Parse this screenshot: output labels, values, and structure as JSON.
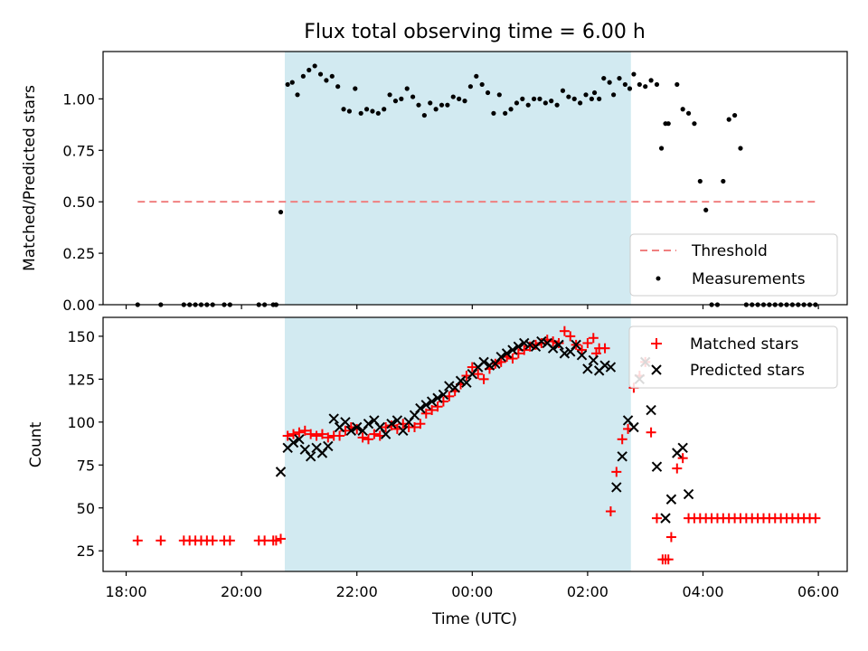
{
  "figure": {
    "title": "Flux total observing time = 6.00 h"
  },
  "chart_data": [
    {
      "type": "scatter",
      "panel": "top",
      "title": "Flux total observing time = 6.00 h",
      "xlabel": "",
      "ylabel": "Matched/Predicted stars",
      "xlim": [
        17.6,
        30.5
      ],
      "ylim": [
        0.0,
        1.23
      ],
      "x_ticks_hours": [
        18,
        20,
        22,
        24,
        26,
        28,
        30
      ],
      "x_tick_labels": [
        "18:00",
        "20:00",
        "22:00",
        "00:00",
        "02:00",
        "04:00",
        "06:00"
      ],
      "y_ticks": [
        0.0,
        0.25,
        0.5,
        0.75,
        1.0
      ],
      "y_tick_labels": [
        "0.00",
        "0.25",
        "0.50",
        "0.75",
        "1.00"
      ],
      "observing_window_hours": [
        20.75,
        26.75
      ],
      "observing_window_color": "#add8e6",
      "legend_position": "lower right",
      "series": [
        {
          "name": "Threshold",
          "kind": "dashed-line",
          "color": "#f08080",
          "x": [
            18.2,
            29.95
          ],
          "y": [
            0.5,
            0.5
          ]
        },
        {
          "name": "Measurements",
          "kind": "dot",
          "color": "#000000",
          "x": [
            18.2,
            18.6,
            19.0,
            19.1,
            19.2,
            19.3,
            19.4,
            19.5,
            19.7,
            19.8,
            20.3,
            20.4,
            20.55,
            20.6,
            20.68,
            20.8,
            20.88,
            20.97,
            21.07,
            21.17,
            21.27,
            21.37,
            21.47,
            21.57,
            21.67,
            21.77,
            21.87,
            21.97,
            22.07,
            22.17,
            22.27,
            22.37,
            22.47,
            22.57,
            22.67,
            22.77,
            22.87,
            22.97,
            23.07,
            23.17,
            23.27,
            23.37,
            23.47,
            23.57,
            23.67,
            23.77,
            23.87,
            23.97,
            24.07,
            24.17,
            24.27,
            24.37,
            24.47,
            24.57,
            24.67,
            24.77,
            24.87,
            24.97,
            25.07,
            25.17,
            25.27,
            25.37,
            25.47,
            25.57,
            25.67,
            25.77,
            25.87,
            25.97,
            26.07,
            26.12,
            26.2,
            26.28,
            26.38,
            26.45,
            26.55,
            26.65,
            26.73,
            26.8,
            26.9,
            27.0,
            27.1,
            27.2,
            27.28,
            27.35,
            27.4,
            27.55,
            27.65,
            27.75,
            27.85,
            27.95,
            28.05,
            28.15,
            28.25,
            28.35,
            28.45,
            28.55,
            28.65,
            28.75,
            28.85,
            28.95,
            29.05,
            29.15,
            29.25,
            29.35,
            29.45,
            29.55,
            29.65,
            29.75,
            29.85,
            29.95
          ],
          "y": [
            0.0,
            0.0,
            0.0,
            0.0,
            0.0,
            0.0,
            0.0,
            0.0,
            0.0,
            0.0,
            0.0,
            0.0,
            0.0,
            0.0,
            0.45,
            1.07,
            1.08,
            1.02,
            1.11,
            1.14,
            1.16,
            1.12,
            1.09,
            1.11,
            1.06,
            0.95,
            0.94,
            1.05,
            0.93,
            0.95,
            0.94,
            0.93,
            0.95,
            1.02,
            0.99,
            1.0,
            1.05,
            1.01,
            0.97,
            0.92,
            0.98,
            0.95,
            0.97,
            0.97,
            1.01,
            1.0,
            0.99,
            1.06,
            1.11,
            1.07,
            1.03,
            0.93,
            1.02,
            0.93,
            0.95,
            0.98,
            1.0,
            0.97,
            1.0,
            1.0,
            0.98,
            0.99,
            0.97,
            1.04,
            1.01,
            1.0,
            0.98,
            1.02,
            1.0,
            1.03,
            1.0,
            1.1,
            1.08,
            1.02,
            1.1,
            1.07,
            1.05,
            1.12,
            1.07,
            1.06,
            1.09,
            1.07,
            0.76,
            0.88,
            0.88,
            1.07,
            0.95,
            0.93,
            0.88,
            0.6,
            0.46,
            0.0,
            0.0,
            0.6,
            0.9,
            0.92,
            0.76,
            0.0,
            0.0,
            0.0,
            0.0,
            0.0,
            0.0,
            0.0,
            0.0,
            0.0,
            0.0,
            0.0,
            0.0,
            0.0
          ]
        }
      ]
    },
    {
      "type": "scatter",
      "panel": "bottom",
      "title": "",
      "xlabel": "Time (UTC)",
      "ylabel": "Count",
      "xlim": [
        17.6,
        30.5
      ],
      "ylim": [
        13,
        161
      ],
      "x_ticks_hours": [
        18,
        20,
        22,
        24,
        26,
        28,
        30
      ],
      "x_tick_labels": [
        "18:00",
        "20:00",
        "22:00",
        "00:00",
        "02:00",
        "04:00",
        "06:00"
      ],
      "y_ticks": [
        25,
        50,
        75,
        100,
        125,
        150
      ],
      "y_tick_labels": [
        "25",
        "50",
        "75",
        "100",
        "125",
        "150"
      ],
      "observing_window_hours": [
        20.75,
        26.75
      ],
      "observing_window_color": "#add8e6",
      "legend_position": "upper right",
      "series": [
        {
          "name": "Matched stars",
          "marker": "plus",
          "color": "#ff0000",
          "x": [
            18.2,
            18.6,
            19.0,
            19.1,
            19.2,
            19.3,
            19.4,
            19.5,
            19.7,
            19.8,
            20.3,
            20.4,
            20.55,
            20.6,
            20.68,
            20.8,
            20.9,
            21.0,
            21.1,
            21.2,
            21.3,
            21.4,
            21.5,
            21.6,
            21.7,
            21.8,
            21.9,
            22.0,
            22.1,
            22.2,
            22.3,
            22.4,
            22.5,
            22.6,
            22.7,
            22.8,
            22.9,
            23.0,
            23.1,
            23.2,
            23.3,
            23.4,
            23.5,
            23.6,
            23.7,
            23.8,
            23.9,
            24.0,
            24.1,
            24.2,
            24.3,
            24.4,
            24.5,
            24.6,
            24.7,
            24.8,
            24.9,
            25.0,
            25.1,
            25.2,
            25.3,
            25.4,
            25.5,
            25.6,
            25.7,
            25.8,
            25.9,
            26.0,
            26.1,
            26.15,
            26.2,
            26.3,
            26.4,
            26.5,
            26.6,
            26.7,
            26.8,
            26.9,
            27.0,
            27.1,
            27.2,
            27.3,
            27.35,
            27.4,
            27.45,
            27.55,
            27.65,
            27.75,
            27.85,
            27.95,
            28.05,
            28.15,
            28.25,
            28.35,
            28.45,
            28.55,
            28.65,
            28.75,
            28.85,
            28.95,
            29.05,
            29.15,
            29.25,
            29.35,
            29.45,
            29.55,
            29.65,
            29.75,
            29.85,
            29.95
          ],
          "y": [
            31,
            31,
            31,
            31,
            31,
            31,
            31,
            31,
            31,
            31,
            31,
            31,
            31,
            31,
            32,
            92,
            93,
            94,
            95,
            93,
            92,
            93,
            91,
            92,
            92,
            95,
            97,
            96,
            91,
            90,
            93,
            92,
            97,
            98,
            96,
            99,
            97,
            97,
            99,
            105,
            107,
            109,
            112,
            115,
            118,
            122,
            127,
            132,
            128,
            125,
            131,
            134,
            135,
            138,
            137,
            140,
            142,
            144,
            145,
            146,
            148,
            147,
            146,
            153,
            150,
            145,
            142,
            146,
            149,
            140,
            143,
            143,
            48,
            71,
            90,
            96,
            120,
            127,
            135,
            94,
            44,
            20,
            20,
            20,
            33,
            73,
            79,
            44,
            44,
            44,
            44,
            44,
            44,
            44,
            44,
            44,
            44,
            44,
            44,
            44,
            44,
            44,
            44,
            44,
            44,
            44,
            44,
            44,
            44,
            44
          ]
        },
        {
          "name": "Predicted stars",
          "marker": "x",
          "color": "#000000",
          "x": [
            20.68,
            20.8,
            20.9,
            21.0,
            21.1,
            21.2,
            21.3,
            21.4,
            21.5,
            21.6,
            21.7,
            21.8,
            21.9,
            22.0,
            22.1,
            22.2,
            22.3,
            22.4,
            22.5,
            22.6,
            22.7,
            22.8,
            22.9,
            23.0,
            23.1,
            23.2,
            23.3,
            23.4,
            23.5,
            23.6,
            23.7,
            23.8,
            23.9,
            24.0,
            24.1,
            24.2,
            24.3,
            24.4,
            24.5,
            24.6,
            24.7,
            24.8,
            24.9,
            25.0,
            25.1,
            25.2,
            25.3,
            25.4,
            25.5,
            25.6,
            25.7,
            25.8,
            25.9,
            26.0,
            26.1,
            26.2,
            26.3,
            26.4,
            26.5,
            26.6,
            26.7,
            26.8,
            26.9,
            27.0,
            27.1,
            27.2,
            27.35,
            27.45,
            27.55,
            27.65,
            27.75
          ],
          "y": [
            71,
            85,
            88,
            90,
            84,
            80,
            85,
            82,
            86,
            102,
            97,
            100,
            95,
            97,
            95,
            99,
            101,
            97,
            93,
            99,
            101,
            95,
            100,
            104,
            108,
            110,
            112,
            114,
            116,
            121,
            120,
            124,
            123,
            128,
            132,
            135,
            133,
            134,
            138,
            140,
            142,
            144,
            146,
            145,
            144,
            147,
            146,
            143,
            145,
            140,
            141,
            145,
            139,
            131,
            136,
            130,
            133,
            132,
            62,
            80,
            101,
            97,
            125,
            135,
            107,
            74,
            44,
            55,
            82,
            85,
            58
          ]
        }
      ]
    }
  ]
}
